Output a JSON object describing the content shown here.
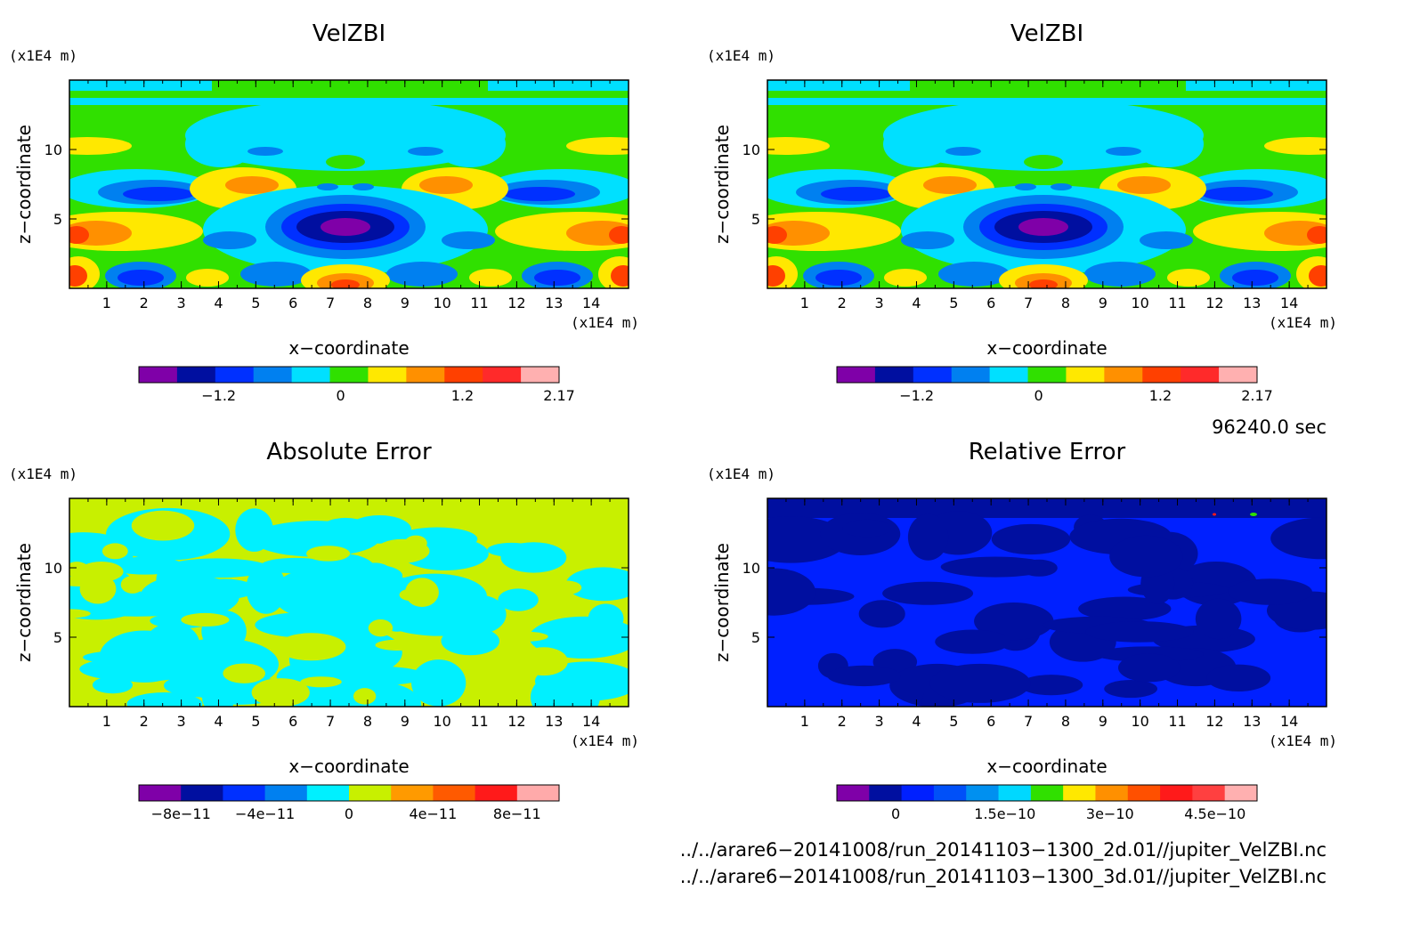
{
  "panels": [
    {
      "title": "VelZBI",
      "x_unit": "(x1E4 m)",
      "z_unit": "(x1E4 m)",
      "xlabel": "x−coordinate",
      "ylabel": "z−coordinate",
      "x_ticks": [
        "1",
        "2",
        "3",
        "4",
        "5",
        "6",
        "7",
        "8",
        "9",
        "10",
        "11",
        "12",
        "13",
        "14"
      ],
      "z_ticks": [
        "5",
        "10"
      ],
      "colorbar_colors": [
        "#7f00a8",
        "#000fa0",
        "#0030ff",
        "#0080f0",
        "#00e0ff",
        "#30e000",
        "#ffe800",
        "#ff9000",
        "#ff4000",
        "#ff2a2a",
        "#ffb0b0"
      ],
      "colorbar_ticks": [
        "−1.2",
        "0",
        "1.2",
        "2.17"
      ],
      "field": "velzbi"
    },
    {
      "title": "VelZBI",
      "x_unit": "(x1E4 m)",
      "z_unit": "(x1E4 m)",
      "xlabel": "x−coordinate",
      "ylabel": "z−coordinate",
      "x_ticks": [
        "1",
        "2",
        "3",
        "4",
        "5",
        "6",
        "7",
        "8",
        "9",
        "10",
        "11",
        "12",
        "13",
        "14"
      ],
      "z_ticks": [
        "5",
        "10"
      ],
      "colorbar_colors": [
        "#7f00a8",
        "#000fa0",
        "#0030ff",
        "#0080f0",
        "#00e0ff",
        "#30e000",
        "#ffe800",
        "#ff9000",
        "#ff4000",
        "#ff2a2a",
        "#ffb0b0"
      ],
      "colorbar_ticks": [
        "−1.2",
        "0",
        "1.2",
        "2.17"
      ],
      "field": "velzbi"
    },
    {
      "title": "Absolute Error",
      "x_unit": "(x1E4 m)",
      "z_unit": "(x1E4 m)",
      "xlabel": "x−coordinate",
      "ylabel": "z−coordinate",
      "x_ticks": [
        "1",
        "2",
        "3",
        "4",
        "5",
        "6",
        "7",
        "8",
        "9",
        "10",
        "11",
        "12",
        "13",
        "14"
      ],
      "z_ticks": [
        "5",
        "10"
      ],
      "colorbar_colors": [
        "#7f00a8",
        "#000fa0",
        "#0030ff",
        "#0080f0",
        "#00f0ff",
        "#c8f000",
        "#ff9a00",
        "#ff5a00",
        "#ff1a1a",
        "#ffaaaa"
      ],
      "colorbar_ticks": [
        "−8e−11",
        "−4e−11",
        "0",
        "4e−11",
        "8e−11"
      ],
      "field": "abs"
    },
    {
      "title": "Relative Error",
      "x_unit": "(x1E4 m)",
      "z_unit": "(x1E4 m)",
      "xlabel": "x−coordinate",
      "ylabel": "z−coordinate",
      "x_ticks": [
        "1",
        "2",
        "3",
        "4",
        "5",
        "6",
        "7",
        "8",
        "9",
        "10",
        "11",
        "12",
        "13",
        "14"
      ],
      "z_ticks": [
        "5",
        "10"
      ],
      "colorbar_colors": [
        "#7f00a8",
        "#000fa0",
        "#0020ff",
        "#0050f8",
        "#0090f0",
        "#00d8ff",
        "#30e000",
        "#ffe800",
        "#ff9000",
        "#ff5000",
        "#ff1a1a",
        "#ff4040",
        "#ffb0b0"
      ],
      "colorbar_ticks": [
        "0",
        "1.5e−10",
        "3e−10",
        "4.5e−10"
      ],
      "field": "rel"
    }
  ],
  "time_label": "96240.0 sec",
  "files": [
    "../../arare6−20141008/run_20141103−1300_2d.01//jupiter_VelZBI.nc",
    "../../arare6−20141008/run_20141103−1300_3d.01//jupiter_VelZBI.nc"
  ],
  "chart_data": [
    {
      "type": "heatmap",
      "title": "VelZBI",
      "xlabel": "x−coordinate",
      "ylabel": "z−coordinate",
      "x_unit": "(x1E4 m)",
      "z_unit": "(x1E4 m)",
      "xlim": [
        0,
        15
      ],
      "ylim": [
        0,
        15
      ],
      "colorbar_ticks": [
        -1.2,
        0,
        1.2,
        2.17
      ]
    },
    {
      "type": "heatmap",
      "title": "VelZBI",
      "xlabel": "x−coordinate",
      "ylabel": "z−coordinate",
      "x_unit": "(x1E4 m)",
      "z_unit": "(x1E4 m)",
      "xlim": [
        0,
        15
      ],
      "ylim": [
        0,
        15
      ],
      "colorbar_ticks": [
        -1.2,
        0,
        1.2,
        2.17
      ]
    },
    {
      "type": "heatmap",
      "title": "Absolute Error",
      "xlabel": "x−coordinate",
      "ylabel": "z−coordinate",
      "x_unit": "(x1E4 m)",
      "z_unit": "(x1E4 m)",
      "xlim": [
        0,
        15
      ],
      "ylim": [
        0,
        15
      ],
      "colorbar_ticks": [
        -8e-11,
        -4e-11,
        0,
        4e-11,
        8e-11
      ]
    },
    {
      "type": "heatmap",
      "title": "Relative Error",
      "xlabel": "x−coordinate",
      "ylabel": "z−coordinate",
      "x_unit": "(x1E4 m)",
      "z_unit": "(x1E4 m)",
      "xlim": [
        0,
        15
      ],
      "ylim": [
        0,
        15
      ],
      "colorbar_ticks": [
        0,
        1.5e-10,
        3e-10,
        4.5e-10
      ]
    }
  ]
}
